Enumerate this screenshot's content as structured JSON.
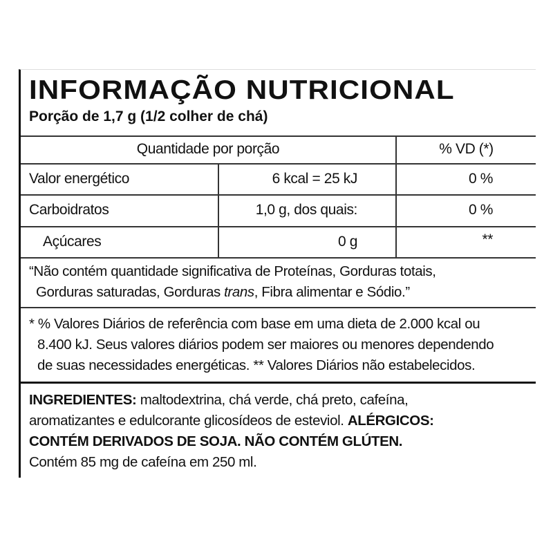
{
  "title": "INFORMAÇÃO NUTRICIONAL",
  "portion": "Porção de 1,7 g (1/2 colher de chá)",
  "table": {
    "header": {
      "quantity": "Quantidade por porção",
      "dv": "% VD (*)"
    },
    "rows": [
      {
        "name": "Valor energético",
        "amount": "6 kcal = 25 kJ",
        "dv": "0 %"
      },
      {
        "name": "Carboidratos",
        "amount": "1,0 g, dos quais:",
        "dv": "0 %"
      },
      {
        "name": "Açúcares",
        "amount": "0 g",
        "dv": "**"
      }
    ]
  },
  "notice": {
    "part1": "“Não contém quantidade significativa de Proteínas, Gorduras totais,",
    "part2": "Gorduras saturadas, Gorduras ",
    "italic": "trans",
    "part3": ", Fibra alimentar e Sódio.”"
  },
  "footnote": {
    "line1": "* % Valores Diários de referência com base em uma dieta de 2.000 kcal ou",
    "line2": "8.400 kJ. Seus valores diários podem ser maiores ou menores dependendo",
    "line3": "de suas necessidades energéticas. ** Valores Diários não estabelecidos."
  },
  "ingredients": {
    "label": "INGREDIENTES:",
    "text": " maltodextrina, chá verde, chá preto, cafeína,",
    "line2": "aromatizantes e edulcorante glicosídeos de esteviol. ",
    "allergens_label": "ALÉRGICOS:",
    "allergens": "CONTÉM DERIVADOS DE SOJA. NÃO CONTÉM GLÚTEN.",
    "caffeine": "Contém 85 mg de cafeína em 250 ml."
  }
}
